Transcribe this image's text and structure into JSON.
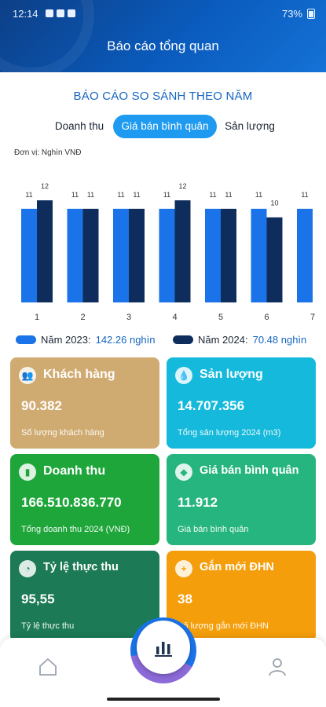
{
  "status_bar": {
    "time": "12:14",
    "battery": "73%"
  },
  "header": {
    "title": "Báo cáo tổng quan"
  },
  "section": {
    "title": "BÁO CÁO SO SÁNH THEO NĂM"
  },
  "tabs": [
    {
      "label": "Doanh thu",
      "active": false
    },
    {
      "label": "Giá bán bình quân",
      "active": true
    },
    {
      "label": "Sản lượng",
      "active": false
    }
  ],
  "unit_label": "Đơn vị: Nghìn VNĐ",
  "chart_data": {
    "type": "bar",
    "categories": [
      "1",
      "2",
      "3",
      "4",
      "5",
      "6",
      "7"
    ],
    "series": [
      {
        "name": "Năm 2023",
        "color": "#1a73e8",
        "values": [
          11,
          11,
          11,
          11,
          11,
          11,
          11
        ]
      },
      {
        "name": "Năm 2024",
        "color": "#0f2d5c",
        "values": [
          12,
          11,
          11,
          12,
          11,
          10,
          null
        ]
      }
    ],
    "ylim": [
      0,
      12
    ],
    "grid": false,
    "legend_position": "bottom"
  },
  "legend": [
    {
      "label": "Năm 2023:",
      "value": "142.26 nghìn",
      "color": "#1a73e8"
    },
    {
      "label": "Năm 2024:",
      "value": "70.48 nghìn",
      "color": "#0f2d5c"
    }
  ],
  "cards": [
    {
      "title": "Khách hàng",
      "value": "90.382",
      "subtitle": "Số lượng khách hàng",
      "icon": "users-icon",
      "color": "#d0ab71"
    },
    {
      "title": "Sản lượng",
      "value": "14.707.356",
      "subtitle": "Tổng sản lượng 2024 (m3)",
      "icon": "water-drop-icon",
      "color": "#14b9db"
    },
    {
      "title": "Doanh thu",
      "value": "166.510.836.770",
      "subtitle": "Tổng doanh thu 2024 (VNĐ)",
      "icon": "bar-chart-icon",
      "color": "#1ea63a"
    },
    {
      "title": "Giá bán bình quân",
      "value": "11.912",
      "subtitle": "Giá bán bình quân",
      "icon": "price-tag-icon",
      "color": "#26b57e"
    },
    {
      "title": "Tỷ lệ thực thu",
      "value": "95,55",
      "subtitle": "Tỷ lệ thực thu",
      "icon": "gauge-icon",
      "color": "#1c7a56"
    },
    {
      "title": "Gắn mới ĐHN",
      "value": "38",
      "subtitle": "Số lượng gắn mới ĐHN",
      "icon": "plus-icon",
      "color": "#f59e0b"
    }
  ],
  "bottom_nav": {
    "home_icon": "home-icon",
    "center_icon": "bar-chart-icon",
    "profile_icon": "user-icon"
  }
}
